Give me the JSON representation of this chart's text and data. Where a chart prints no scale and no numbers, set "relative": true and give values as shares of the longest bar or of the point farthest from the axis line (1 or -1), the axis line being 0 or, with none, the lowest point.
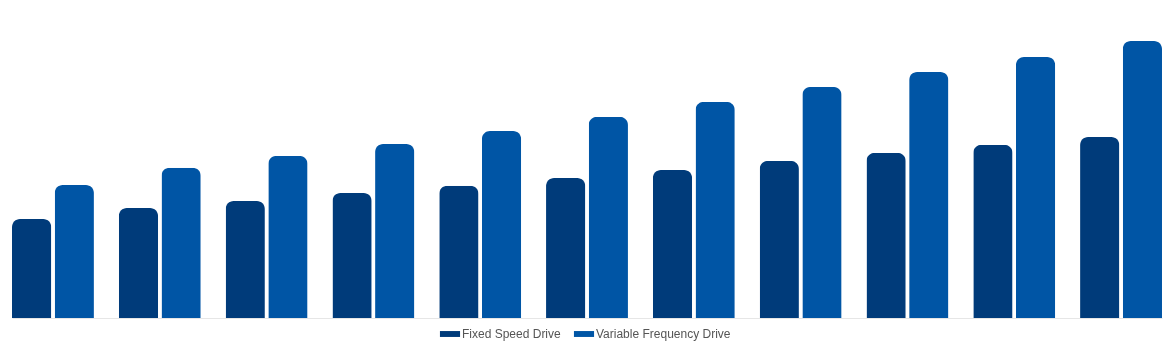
{
  "chart_data": {
    "type": "bar",
    "relative": true,
    "legend": "bottom",
    "categories": [
      null,
      null,
      null,
      null,
      null,
      null,
      null,
      null,
      null,
      null,
      null
    ],
    "series": [
      {
        "name": "Fixed Speed Drive",
        "color": "#003b7a",
        "values": [
          0.357,
          0.397,
          0.422,
          0.451,
          0.477,
          0.505,
          0.534,
          0.567,
          0.596,
          0.625,
          0.653
        ]
      },
      {
        "name": "Variable Frequency Drive",
        "color": "#0055a5",
        "values": [
          0.48,
          0.542,
          0.585,
          0.628,
          0.675,
          0.726,
          0.78,
          0.834,
          0.888,
          0.942,
          1
        ]
      }
    ]
  }
}
